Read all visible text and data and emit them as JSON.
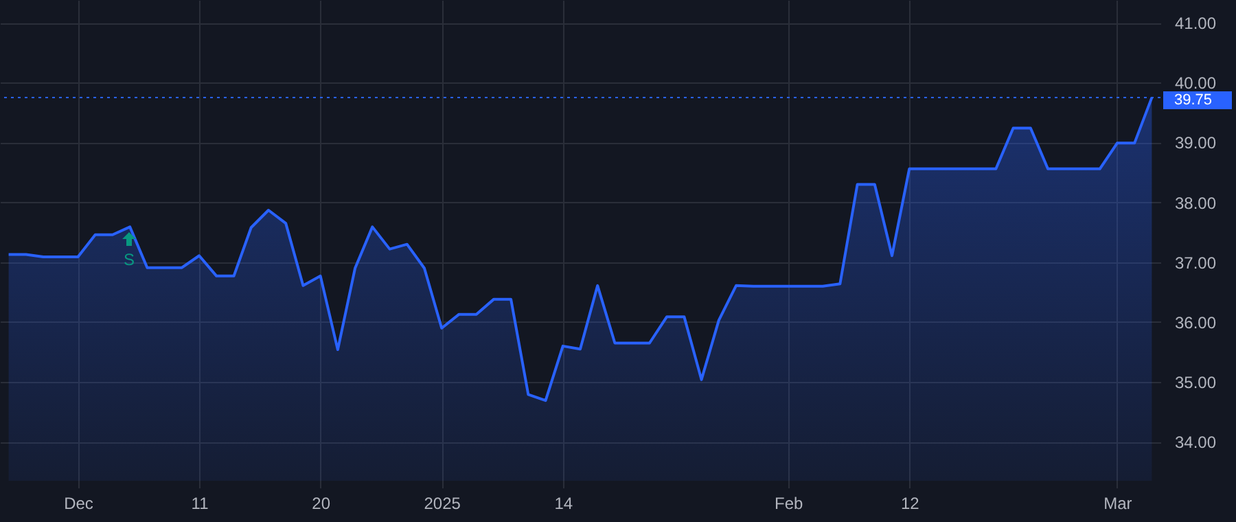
{
  "chart_data": {
    "type": "area",
    "categories": [
      null,
      null,
      null,
      null,
      "Dec",
      null,
      null,
      null,
      null,
      null,
      null,
      "11",
      null,
      null,
      null,
      null,
      null,
      null,
      "20",
      null,
      null,
      null,
      null,
      null,
      null,
      "2025",
      null,
      null,
      null,
      null,
      null,
      null,
      "14",
      null,
      null,
      null,
      null,
      null,
      null,
      null,
      null,
      null,
      null,
      null,
      null,
      "Feb",
      null,
      null,
      null,
      null,
      null,
      null,
      "12",
      null,
      null,
      null,
      null,
      null,
      null,
      null,
      null,
      null,
      null,
      null,
      "Mar",
      null,
      null
    ],
    "series": [
      {
        "color": "#2962ff",
        "values": [
          37.13,
          37.13,
          37.09,
          37.09,
          37.09,
          37.46,
          37.46,
          37.59,
          36.91,
          36.91,
          36.91,
          37.11,
          36.77,
          36.77,
          37.58,
          37.87,
          37.65,
          36.61,
          36.77,
          35.54,
          36.9,
          37.59,
          37.22,
          37.3,
          36.9,
          35.9,
          36.13,
          36.13,
          36.38,
          36.38,
          34.79,
          34.69,
          35.6,
          35.55,
          36.61,
          35.65,
          35.65,
          35.65,
          36.09,
          36.09,
          35.04,
          36.03,
          36.61,
          36.6,
          36.6,
          36.6,
          36.6,
          36.6,
          36.64,
          38.3,
          38.3,
          37.11,
          38.56,
          38.56,
          38.56,
          38.56,
          38.56,
          38.56,
          39.24,
          39.24,
          38.56,
          38.56,
          38.56,
          38.56,
          38.99,
          38.99,
          39.75
        ]
      }
    ],
    "ylim": [
      33.35,
      41.38
    ],
    "yticks": [
      {
        "value": 34,
        "label": "34.00"
      },
      {
        "value": 35,
        "label": "35.00"
      },
      {
        "value": 36,
        "label": "36.00"
      },
      {
        "value": 37,
        "label": "37.00"
      },
      {
        "value": 38,
        "label": "38.00"
      },
      {
        "value": 39,
        "label": "39.00"
      },
      {
        "value": 40,
        "label": "40.00"
      },
      {
        "value": 41,
        "label": "41.00"
      }
    ],
    "grid": true,
    "ref_lines": [
      {
        "axis": "y",
        "value": 39.75,
        "label": "39.75",
        "color": "#2962ff",
        "line_style": "dotted"
      }
    ],
    "annotations": [
      "S"
    ]
  }
}
